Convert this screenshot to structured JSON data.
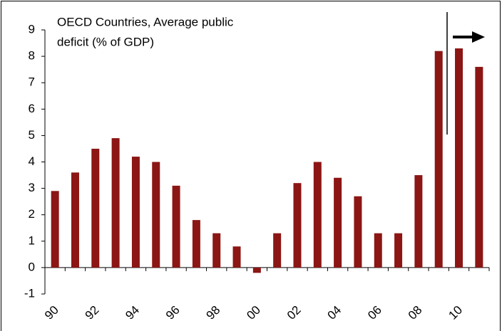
{
  "chart_data": {
    "type": "bar",
    "title": [
      "OECD Countries, Average public",
      "deficit (% of GDP)"
    ],
    "categories": [
      "90",
      null,
      "92",
      null,
      "94",
      null,
      "96",
      null,
      "98",
      null,
      "00",
      null,
      "02",
      null,
      "04",
      null,
      "06",
      null,
      "08",
      null,
      "10",
      null
    ],
    "values": [
      2.9,
      3.6,
      4.5,
      4.9,
      4.2,
      4.0,
      3.1,
      1.8,
      1.3,
      0.8,
      -0.2,
      1.3,
      3.2,
      4.0,
      3.4,
      2.7,
      1.3,
      1.3,
      3.5,
      8.2,
      8.3,
      7.6
    ],
    "color": "#8b1614",
    "ylim": [
      -1,
      9
    ],
    "yticks": [
      -1,
      0,
      1,
      2,
      3,
      4,
      5,
      6,
      7,
      8,
      9
    ]
  }
}
